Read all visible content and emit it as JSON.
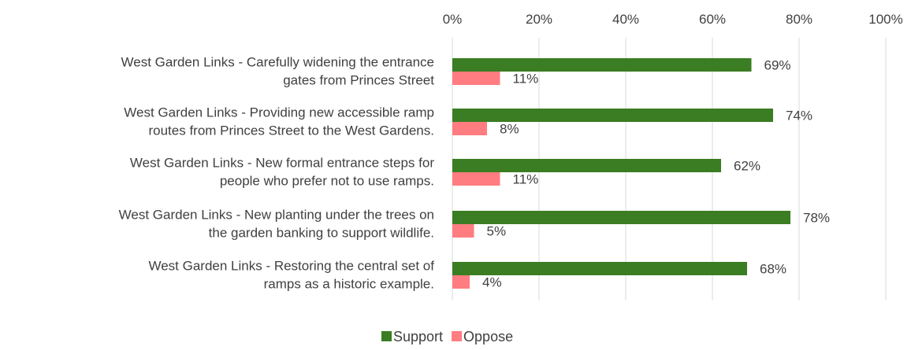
{
  "chart_data": {
    "type": "bar",
    "orientation": "horizontal",
    "title": "",
    "xlabel": "",
    "ylabel": "",
    "xlim": [
      0,
      100
    ],
    "x_ticks": [
      "0%",
      "20%",
      "40%",
      "60%",
      "80%",
      "100%"
    ],
    "x_tick_values": [
      0,
      20,
      40,
      60,
      80,
      100
    ],
    "grid": true,
    "legend_position": "bottom",
    "categories": [
      [
        "West Garden Links - Carefully widening the entrance",
        "gates from Princes Street"
      ],
      [
        "West Garden Links - Providing new accessible ramp",
        "routes from Princes Street to the West Gardens."
      ],
      [
        "West Garden Links - New formal entrance steps for",
        "people who prefer not to use ramps."
      ],
      [
        "West Garden Links - New planting under the trees on",
        "the garden banking to support wildlife."
      ],
      [
        "West Garden Links - Restoring the central set of",
        "ramps as a historic example."
      ]
    ],
    "series": [
      {
        "name": "Support",
        "color": "#3a7d22",
        "values": [
          69,
          74,
          62,
          78,
          68
        ],
        "labels": [
          "69%",
          "74%",
          "62%",
          "78%",
          "68%"
        ]
      },
      {
        "name": "Oppose",
        "color": "#ff7c80",
        "values": [
          11,
          8,
          11,
          5,
          4
        ],
        "labels": [
          "11%",
          "8%",
          "11%",
          "5%",
          "4%"
        ]
      }
    ]
  }
}
